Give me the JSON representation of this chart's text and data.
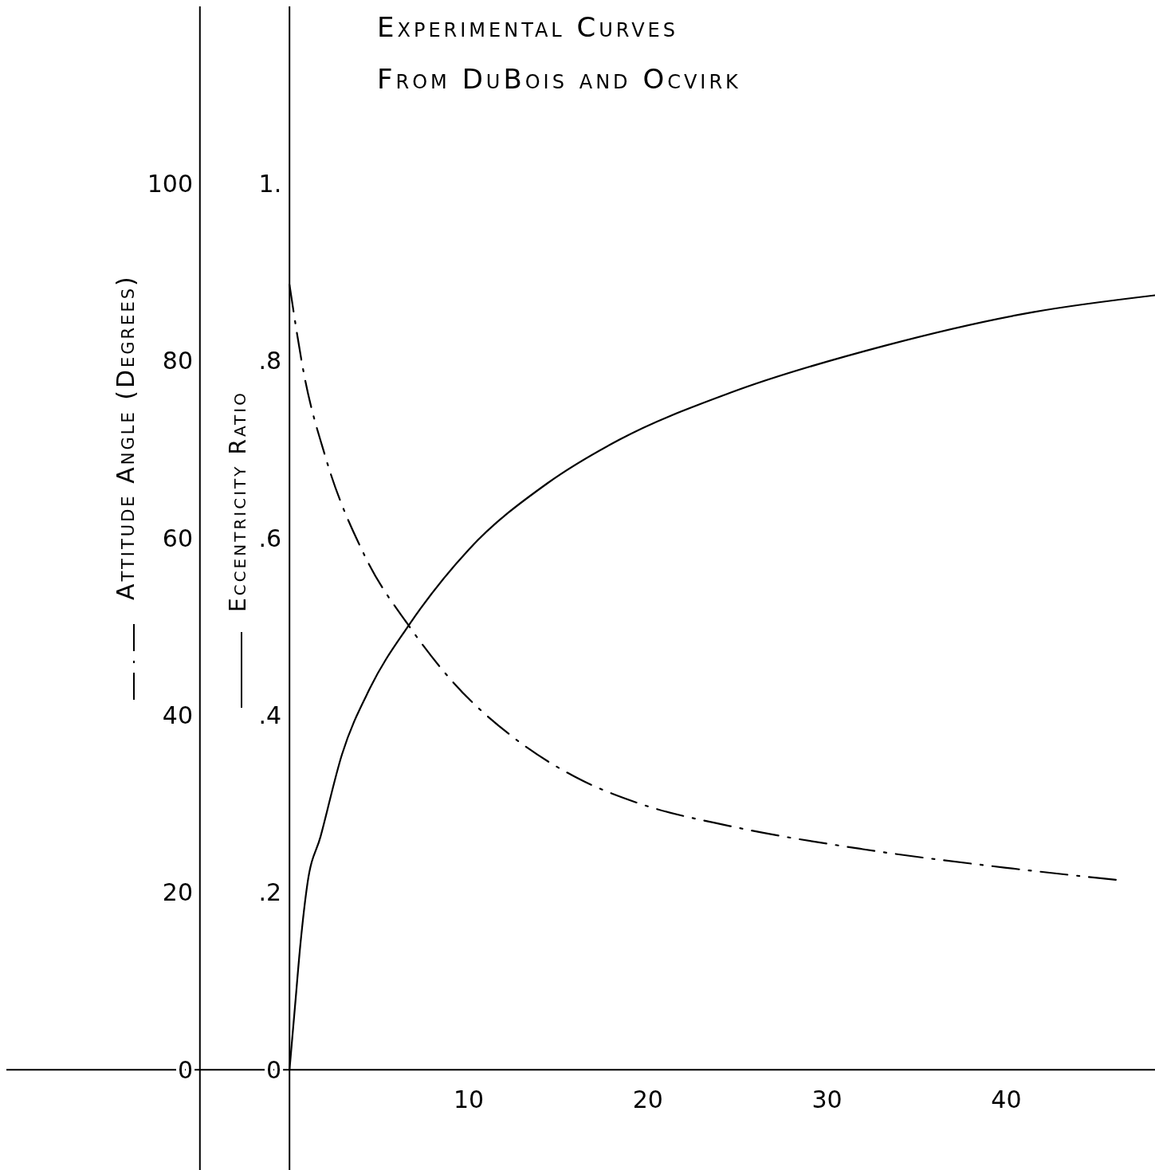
{
  "chart_data": {
    "type": "line",
    "title": "Experimental Curves",
    "subtitle": "From DuBois and Ocvirk",
    "ylabel": "Attitude Angle (Degrees)",
    "y2label": "Eccentricity Ratio",
    "xlim": [
      -15.8,
      48.3
    ],
    "xticks": [
      10,
      20,
      30,
      40
    ],
    "ylim": [
      -11.3,
      120
    ],
    "yticks": [
      0,
      20,
      40,
      60,
      80,
      100
    ],
    "y2lim": [
      -0.113,
      1.2
    ],
    "y2ticks": [
      {
        "value": 0,
        "label": "0"
      },
      {
        "value": 0.2,
        "label": ".2"
      },
      {
        "value": 0.4,
        "label": ".4"
      },
      {
        "value": 0.6,
        "label": ".6"
      },
      {
        "value": 0.8,
        "label": ".8"
      },
      {
        "value": 1,
        "label": "1."
      }
    ],
    "grid": false,
    "marker": "none",
    "ref_lines": [
      {
        "axis": "x",
        "value": -5
      }
    ],
    "series": [
      {
        "color": "#000000",
        "axis": "y2",
        "line_style": "solid",
        "x": [
          0,
          0.3,
          0.62,
          1.0,
          1.73,
          2.93,
          4.5,
          6.67,
          10.0,
          14.4,
          18.4,
          24.6,
          33.2,
          41.5,
          48.3
        ],
        "values": [
          0,
          0.07,
          0.144,
          0.21,
          0.263,
          0.356,
          0.431,
          0.502,
          0.587,
          0.662,
          0.711,
          0.764,
          0.817,
          0.855,
          0.874
        ]
      },
      {
        "color": "#000000",
        "axis": "y",
        "line_style": "dashed",
        "x": [
          0,
          0.8,
          2.0,
          4.2,
          6.7,
          9.1,
          12.5,
          15.9,
          19.6,
          24.6,
          32.0,
          40.0,
          46.3
        ],
        "values": [
          88.6,
          78.6,
          69.2,
          58.0,
          50.0,
          43.8,
          37.5,
          33.1,
          30.0,
          27.5,
          24.9,
          22.8,
          21.4
        ]
      }
    ]
  }
}
